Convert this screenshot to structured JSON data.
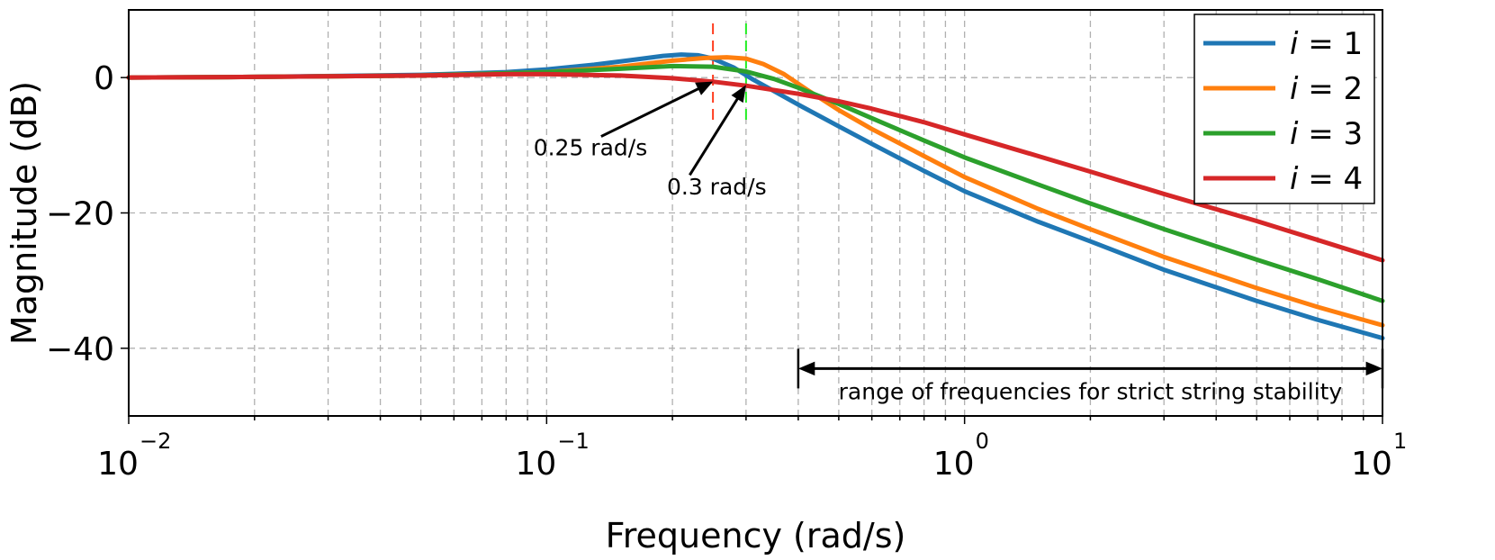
{
  "chart_data": {
    "type": "line",
    "title": "",
    "xlabel": "Frequency (rad/s)",
    "ylabel": "Magnitude (dB)",
    "xscale": "log",
    "xlim": [
      0.01,
      10
    ],
    "ylim": [
      -50,
      10
    ],
    "grid": true,
    "legend_position": "top-right",
    "x_ticks": [
      {
        "value": 0.01,
        "base": "10",
        "exp": "−2"
      },
      {
        "value": 0.1,
        "base": "10",
        "exp": "−1"
      },
      {
        "value": 1,
        "base": "10",
        "exp": "0"
      },
      {
        "value": 10,
        "base": "10",
        "exp": "1"
      }
    ],
    "y_ticks": [
      {
        "value": 0,
        "label": "0"
      },
      {
        "value": -20,
        "label": "−20"
      },
      {
        "value": -40,
        "label": "−40"
      }
    ],
    "series": [
      {
        "name": "i = 1",
        "legend_var": "i",
        "legend_eq": " = 1",
        "color": "#1f77b4",
        "x": [
          0.01,
          0.02,
          0.05,
          0.08,
          0.1,
          0.13,
          0.16,
          0.19,
          0.21,
          0.23,
          0.25,
          0.28,
          0.31,
          0.35,
          0.4,
          0.5,
          0.6,
          0.8,
          1,
          1.5,
          2,
          3,
          5,
          7,
          10
        ],
        "y": [
          0,
          0.1,
          0.4,
          0.8,
          1.2,
          1.9,
          2.6,
          3.2,
          3.4,
          3.3,
          2.8,
          1.5,
          -0.2,
          -2.0,
          -4.0,
          -7.2,
          -9.8,
          -13.8,
          -16.8,
          -21.3,
          -24.2,
          -28.4,
          -33.0,
          -35.8,
          -38.5
        ]
      },
      {
        "name": "i = 2",
        "legend_var": "i",
        "legend_eq": " = 2",
        "color": "#ff7f0e",
        "x": [
          0.01,
          0.02,
          0.05,
          0.1,
          0.15,
          0.2,
          0.24,
          0.27,
          0.3,
          0.33,
          0.37,
          0.42,
          0.5,
          0.6,
          0.8,
          1,
          1.5,
          2,
          3,
          5,
          7,
          10
        ],
        "y": [
          0,
          0.1,
          0.3,
          0.8,
          1.6,
          2.5,
          2.9,
          3.0,
          2.8,
          2.0,
          0.5,
          -1.8,
          -4.8,
          -7.6,
          -11.6,
          -14.7,
          -19.4,
          -22.4,
          -26.5,
          -31.1,
          -33.9,
          -36.6
        ]
      },
      {
        "name": "i = 3",
        "legend_var": "i",
        "legend_eq": " = 3",
        "color": "#2ca02c",
        "x": [
          0.01,
          0.02,
          0.05,
          0.1,
          0.15,
          0.2,
          0.25,
          0.3,
          0.35,
          0.4,
          0.5,
          0.6,
          0.8,
          1,
          1.5,
          2,
          3,
          5,
          7,
          10
        ],
        "y": [
          0,
          0.1,
          0.3,
          0.8,
          1.3,
          1.7,
          1.6,
          0.9,
          -0.2,
          -1.5,
          -3.9,
          -6.0,
          -9.3,
          -11.8,
          -15.8,
          -18.6,
          -22.4,
          -26.9,
          -29.8,
          -33.0
        ]
      },
      {
        "name": "i = 4",
        "legend_var": "i",
        "legend_eq": " = 4",
        "color": "#d62728",
        "x": [
          0.01,
          0.02,
          0.05,
          0.08,
          0.1,
          0.15,
          0.2,
          0.25,
          0.3,
          0.4,
          0.5,
          0.6,
          0.8,
          1,
          1.5,
          2,
          3,
          5,
          7,
          10
        ],
        "y": [
          0,
          0.1,
          0.3,
          0.5,
          0.5,
          0.3,
          -0.1,
          -0.6,
          -1.2,
          -2.4,
          -3.5,
          -4.6,
          -6.6,
          -8.4,
          -11.6,
          -13.9,
          -17.2,
          -21.2,
          -24.0,
          -27.0
        ]
      }
    ],
    "vlines": [
      {
        "x": 0.25,
        "color": "#ff3d1f",
        "y_from": 8,
        "y_to": -6.5
      },
      {
        "x": 0.3,
        "color": "#22ee22",
        "y_from": 8,
        "y_to": -6.5
      }
    ],
    "annotations": [
      {
        "text": "0.25 rad/s",
        "text_x": 0.093,
        "text_y": -11.5,
        "arrow_from_x": 0.135,
        "arrow_from_y": -8.7,
        "arrow_to_x": 0.25,
        "arrow_to_y": -0.6
      },
      {
        "text": "0.3 rad/s",
        "text_x": 0.194,
        "text_y": -17.3,
        "arrow_from_x": 0.22,
        "arrow_from_y": -14.4,
        "arrow_to_x": 0.3,
        "arrow_to_y": -1.1
      }
    ],
    "range_arrow": {
      "text": "range of frequencies for strict string stability",
      "x_start": 0.4,
      "x_end": 10,
      "y": -43.0,
      "text_y": -46.5
    }
  }
}
